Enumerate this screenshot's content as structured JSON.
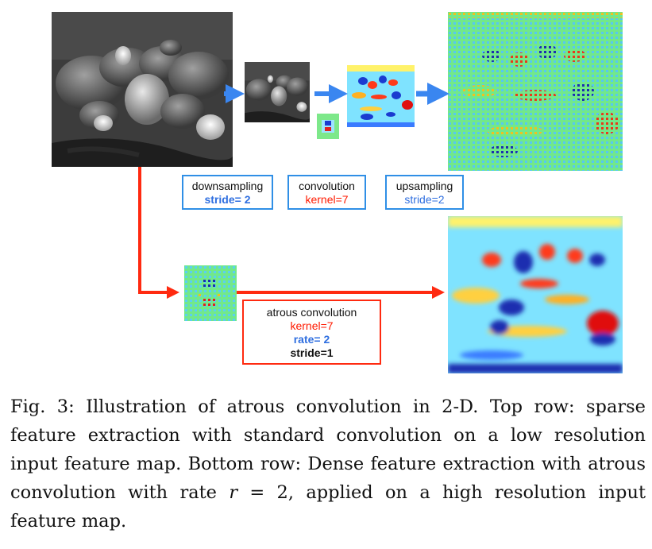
{
  "top_row": {
    "downsampling_box": {
      "line1": "downsampling",
      "line2": "stride= 2"
    },
    "convolution_box": {
      "line1": "convolution",
      "line2": "kernel=7"
    },
    "upsampling_box": {
      "line1": "upsampling",
      "line2": "stride=2"
    }
  },
  "bottom_row": {
    "atrous_box": {
      "line1": "atrous convolution",
      "line2": "kernel=7",
      "line3": "rate= 2",
      "line4": "stride=1"
    }
  },
  "colors": {
    "blue_arrow": "#3a86f0",
    "red_arrow": "#ff2a10",
    "feature_bg": "#6ff07a"
  },
  "caption": {
    "prefix": "Fig. 3: Illustration of atrous convolution in 2-D. Top row: sparse feature extraction with standard convolution on a low resolution input feature map. Bottom row: Dense feature extraction with atrous convolution with rate ",
    "var": "r",
    "suffix": " = 2, applied on a high resolution input feature map."
  }
}
